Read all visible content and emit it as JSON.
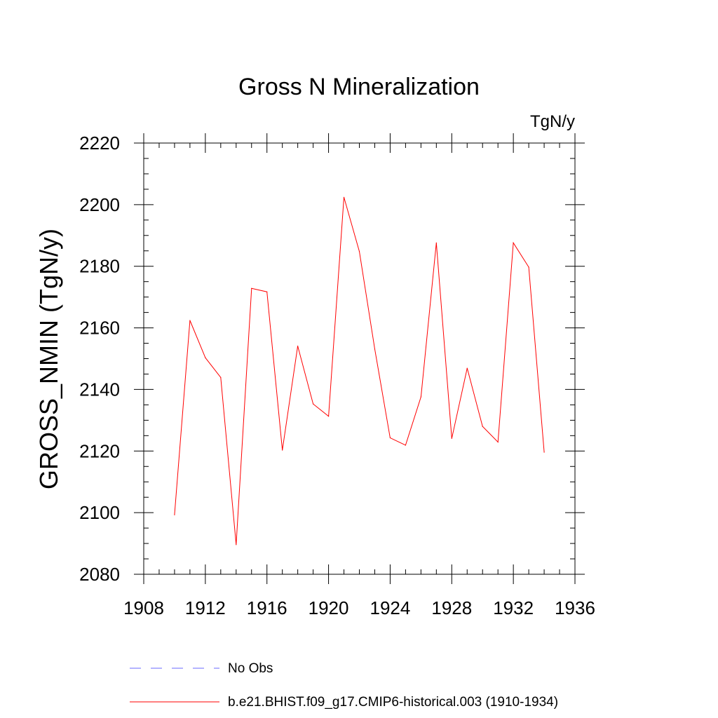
{
  "chart_data": {
    "type": "line",
    "title": "Gross N Mineralization",
    "units_label": "TgN/y",
    "ylabel": "GROSS_NMIN  (TgN/y)",
    "xlabel": "",
    "xlim": [
      1908,
      1936
    ],
    "ylim": [
      2080,
      2220
    ],
    "x_ticks": [
      1908,
      1912,
      1916,
      1920,
      1924,
      1928,
      1932,
      1936
    ],
    "y_ticks": [
      2080,
      2100,
      2120,
      2140,
      2160,
      2180,
      2200,
      2220
    ],
    "x_tick_labels": [
      "1908",
      "1912",
      "1916",
      "1920",
      "1924",
      "1928",
      "1932",
      "1936"
    ],
    "y_tick_labels": [
      "2080",
      "2100",
      "2120",
      "2140",
      "2160",
      "2180",
      "2200",
      "2220"
    ],
    "grid": false,
    "legend_position": "bottom",
    "series": [
      {
        "name": "b.e21.BHIST.f09_g17.CMIP6-historical.003 (1910-1934)",
        "color": "#ff0000",
        "x": [
          1910,
          1911,
          1912,
          1913,
          1914,
          1915,
          1916,
          1917,
          1918,
          1919,
          1920,
          1921,
          1922,
          1923,
          1924,
          1925,
          1926,
          1927,
          1928,
          1929,
          1930,
          1931,
          1932,
          1933,
          1934
        ],
        "y": [
          2099.3,
          2162.4,
          2150.3,
          2143.9,
          2089.6,
          2172.8,
          2171.7,
          2120.3,
          2154.1,
          2135.3,
          2131.3,
          2202.4,
          2184.8,
          2153.1,
          2124.3,
          2121.9,
          2137.6,
          2187.6,
          2124.1,
          2146.9,
          2128.0,
          2122.9,
          2187.6,
          2179.7,
          2119.6
        ]
      }
    ],
    "legend": [
      {
        "label": "No Obs",
        "color": "#6a6aff",
        "style": "dashed"
      },
      {
        "label": "b.e21.BHIST.f09_g17.CMIP6-historical.003 (1910-1934)",
        "color": "#ff0000",
        "style": "solid"
      }
    ]
  }
}
